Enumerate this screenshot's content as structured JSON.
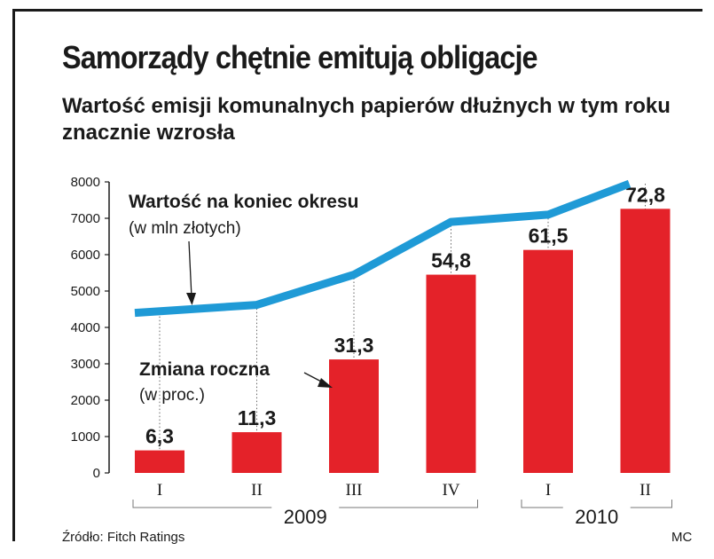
{
  "title": "Samorządy chętnie emitują obligacje",
  "subtitle": "Wartość emisji komunalnych papierów dłużnych w tym roku znacznie wzrosła",
  "source": "Źródło: Fitch Ratings",
  "author": "MC",
  "colors": {
    "bar": "#e42229",
    "line": "#1f9ad6",
    "axis": "#1a1a1a",
    "text": "#1a1a1a"
  },
  "chart_data": {
    "type": "bar",
    "categories": [
      "I",
      "II",
      "III",
      "IV",
      "I",
      "II"
    ],
    "groups": [
      {
        "label": "2009",
        "from": 0,
        "to": 3
      },
      {
        "label": "2010",
        "from": 4,
        "to": 5
      }
    ],
    "series": [
      {
        "name": "Zmiana roczna",
        "name_note": "(w proc.)",
        "type": "bar",
        "values": [
          6.3,
          11.3,
          31.3,
          54.8,
          61.5,
          72.8
        ],
        "value_labels": [
          "6,3",
          "11,3",
          "31,3",
          "54,8",
          "61,5",
          "72,8"
        ],
        "bar_heights": [
          620,
          1120,
          3120,
          5450,
          6130,
          7260
        ]
      },
      {
        "name": "Wartość na koniec okresu",
        "name_note": "(w mln złotych)",
        "type": "line",
        "values": [
          4400,
          4620,
          5450,
          6900,
          7100,
          7950
        ]
      }
    ],
    "yticks": [
      0,
      1000,
      2000,
      3000,
      4000,
      5000,
      6000,
      7000,
      8000
    ],
    "ylim": [
      0,
      8000
    ],
    "grid": false
  }
}
